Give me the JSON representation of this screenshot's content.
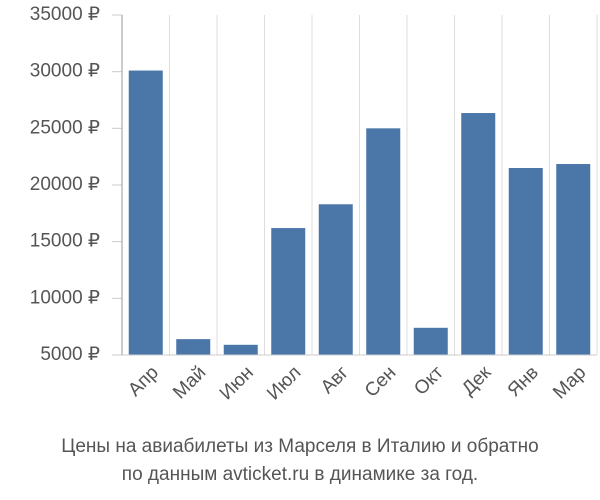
{
  "chart_data": {
    "type": "bar",
    "title": [
      "Цены на авиабилеты из Марселя в Италию и обратно",
      "по данным avticket.ru в динамике за год."
    ],
    "categories": [
      "Апр",
      "Май",
      "Июн",
      "Июл",
      "Авг",
      "Сен",
      "Окт",
      "Дек",
      "Янв",
      "Мар"
    ],
    "values": [
      30100,
      6400,
      5900,
      16200,
      18300,
      25000,
      7400,
      26350,
      21500,
      21850
    ],
    "color": "#4a76a8",
    "ylim": [
      5000,
      35000
    ],
    "yticks": [
      {
        "value": 5000,
        "label": "5000 ₽"
      },
      {
        "value": 10000,
        "label": "10000 ₽"
      },
      {
        "value": 15000,
        "label": "15000 ₽"
      },
      {
        "value": 20000,
        "label": "20000 ₽"
      },
      {
        "value": 25000,
        "label": "25000 ₽"
      },
      {
        "value": 30000,
        "label": "30000 ₽"
      },
      {
        "value": 35000,
        "label": "35000 ₽"
      }
    ],
    "grid": true
  }
}
